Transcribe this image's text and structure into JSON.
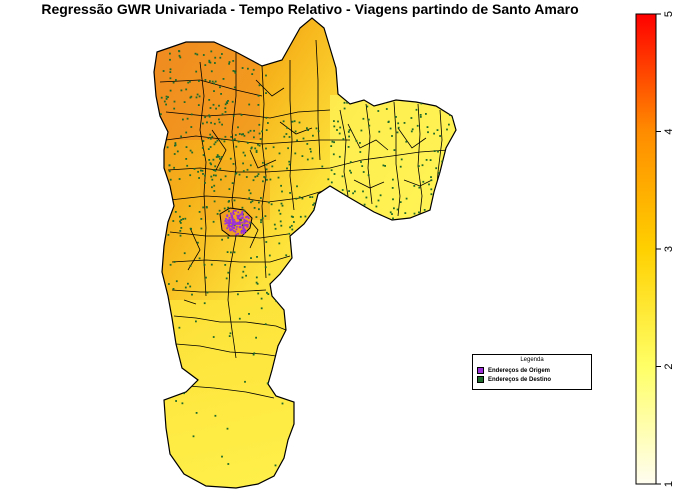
{
  "title": "Regressão GWR Univariada - Tempo Relativo - Viagens partindo de Santo Amaro",
  "legend": {
    "title": "Legenda",
    "items": [
      {
        "label": "Endereços de Origem",
        "color": "#9b30d9"
      },
      {
        "label": "Endereços de Destino",
        "color": "#1e6b2a"
      }
    ]
  },
  "color_scale": {
    "min": 1,
    "max": 5,
    "ticks": [
      "1",
      "2",
      "3",
      "4",
      "5"
    ],
    "colors": [
      "#fffdf0",
      "#ffff66",
      "#ffd000",
      "#ff8c00",
      "#ff0000"
    ]
  },
  "colors": {
    "origin_points": "#9b30d9",
    "destination_points": "#1e6b2a",
    "boundary": "#000000"
  }
}
